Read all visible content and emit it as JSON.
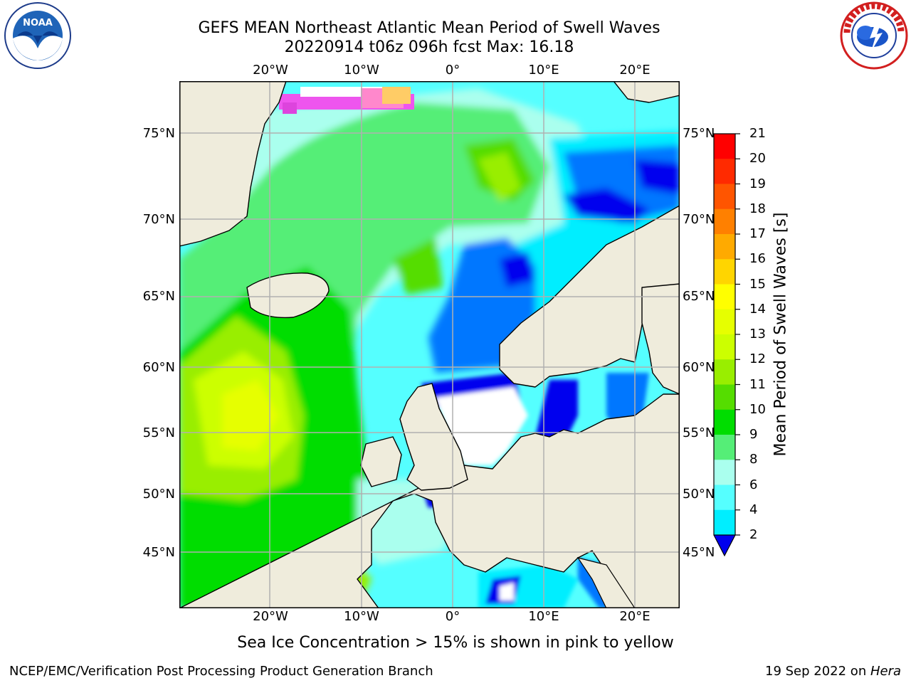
{
  "title_line1": "GEFS MEAN Northeast Atlantic Mean Period of Swell Waves",
  "title_line2": "20220914 t06z 096h fcst   Max: 16.18",
  "lat_labels": [
    "75°N",
    "70°N",
    "65°N",
    "60°N",
    "55°N",
    "50°N",
    "45°N"
  ],
  "lon_labels": [
    "20°W",
    "10°W",
    "0°",
    "10°E",
    "20°E"
  ],
  "colorbar": {
    "label": "Mean Period of Swell Waves [s]",
    "ticks": [
      "21",
      "20",
      "19",
      "18",
      "17",
      "16",
      "15",
      "14",
      "13",
      "12",
      "11",
      "10",
      "9",
      "8",
      "6",
      "4",
      "2"
    ],
    "colors": [
      "#ff0000",
      "#ff2a00",
      "#ff5500",
      "#ff8000",
      "#ffaa00",
      "#ffd500",
      "#ffff00",
      "#e6ff00",
      "#ccff00",
      "#99ee00",
      "#55dd00",
      "#00dd00",
      "#55ee77",
      "#aaffee",
      "#55ffff",
      "#00eeff",
      "#0077ff"
    ],
    "under_color": "#0000ee"
  },
  "ice_note": "Sea Ice Concentration > 15% is shown in pink to yellow",
  "credit": "NCEP/EMC/Verification Post Processing Product Generation Branch",
  "date_stamp": "19 Sep 2022 on ",
  "host": "Hera",
  "logos": {
    "left": "noaa-logo",
    "right": "nws-logo",
    "left_text": "NOAA"
  }
}
